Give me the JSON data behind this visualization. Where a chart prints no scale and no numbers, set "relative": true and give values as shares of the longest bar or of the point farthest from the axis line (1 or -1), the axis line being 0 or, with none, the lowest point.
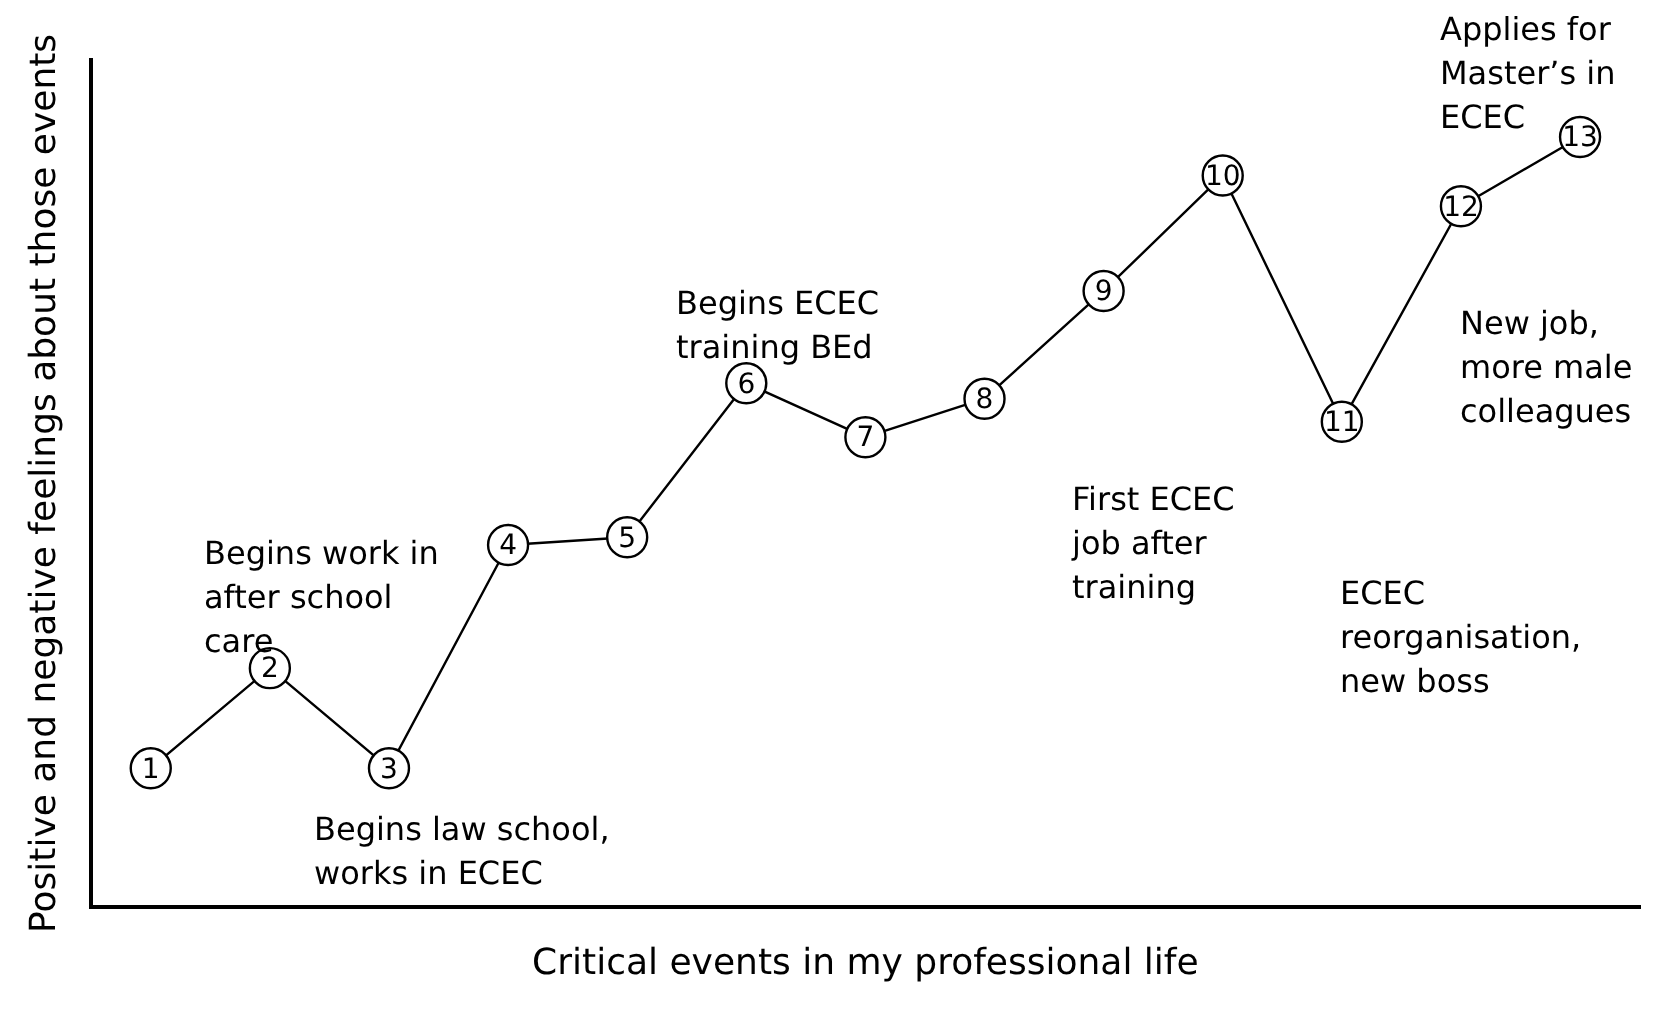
{
  "chart_data": {
    "type": "line",
    "relative": true,
    "xlabel": "Critical events in my professional life",
    "ylabel": "Positive and negative feelings about those events",
    "categories": [
      "1",
      "2",
      "3",
      "4",
      "5",
      "6",
      "7",
      "8",
      "9",
      "10",
      "11",
      "12",
      "13"
    ],
    "series": [
      {
        "color": "#000000",
        "values": [
          0.18,
          0.31,
          0.18,
          0.47,
          0.48,
          0.68,
          0.61,
          0.66,
          0.8,
          0.95,
          0.63,
          0.91,
          1.0
        ]
      }
    ],
    "marker": "circle",
    "line_style": "solid",
    "legend": false,
    "grid": false,
    "annotations": [
      "Begins work in after school care",
      "Begins law school, works in ECEC",
      "Begins ECEC training BEd",
      "First ECEC job after training",
      "ECEC reorganisation, new boss",
      "Applies for Master’s in ECEC",
      "New job, more male colleagues"
    ]
  }
}
